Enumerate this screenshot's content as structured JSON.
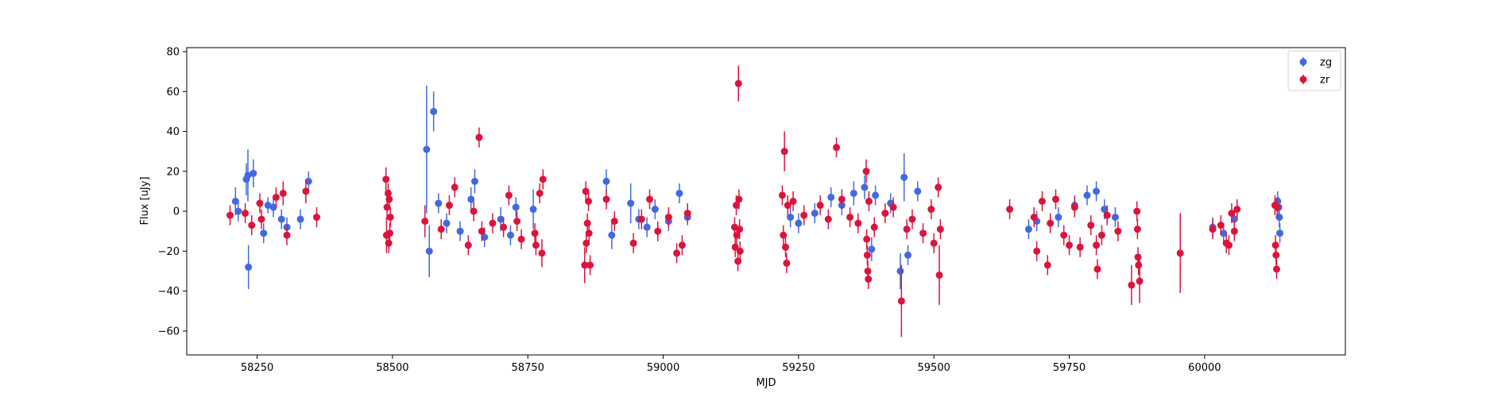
{
  "chart_data": {
    "type": "scatter",
    "title": "",
    "xlabel": "MJD",
    "ylabel": "Flux [uJy]",
    "xlim": [
      58120,
      60260
    ],
    "ylim": [
      -72,
      82
    ],
    "x_ticks": [
      58250,
      58500,
      58750,
      59000,
      59250,
      59500,
      59750,
      60000
    ],
    "x_tick_labels": [
      "58250",
      "58500",
      "58750",
      "59000",
      "59250",
      "59500",
      "59750",
      "60000"
    ],
    "y_ticks": [
      -60,
      -40,
      -20,
      0,
      20,
      40,
      60,
      80
    ],
    "y_tick_labels": [
      "−60",
      "−40",
      "−20",
      "0",
      "20",
      "40",
      "60",
      "80"
    ],
    "grid": false,
    "legend_position": "top-right",
    "series": [
      {
        "name": "zg",
        "color": "#4169e1",
        "points": [
          {
            "x": 58210,
            "y": 5,
            "err": 7
          },
          {
            "x": 58215,
            "y": 0,
            "err": 5
          },
          {
            "x": 58230,
            "y": 16,
            "err": 8
          },
          {
            "x": 58233,
            "y": 18,
            "err": 13
          },
          {
            "x": 58234,
            "y": -28,
            "err": 11
          },
          {
            "x": 58243,
            "y": 19,
            "err": 7
          },
          {
            "x": 58262,
            "y": -11,
            "err": 5
          },
          {
            "x": 58270,
            "y": 3,
            "err": 4
          },
          {
            "x": 58280,
            "y": 2,
            "err": 5
          },
          {
            "x": 58295,
            "y": -4,
            "err": 5
          },
          {
            "x": 58305,
            "y": -8,
            "err": 5
          },
          {
            "x": 58330,
            "y": -4,
            "err": 5
          },
          {
            "x": 58345,
            "y": 15,
            "err": 5
          },
          {
            "x": 58563,
            "y": 31,
            "err": 32
          },
          {
            "x": 58568,
            "y": -20,
            "err": 13
          },
          {
            "x": 58576,
            "y": 50,
            "err": 10
          },
          {
            "x": 58585,
            "y": 4,
            "err": 5
          },
          {
            "x": 58600,
            "y": -6,
            "err": 5
          },
          {
            "x": 58625,
            "y": -10,
            "err": 5
          },
          {
            "x": 58645,
            "y": 6,
            "err": 6
          },
          {
            "x": 58652,
            "y": 15,
            "err": 6
          },
          {
            "x": 58670,
            "y": -13,
            "err": 5
          },
          {
            "x": 58700,
            "y": -4,
            "err": 6
          },
          {
            "x": 58718,
            "y": -12,
            "err": 5
          },
          {
            "x": 58728,
            "y": 2,
            "err": 5
          },
          {
            "x": 58760,
            "y": 1,
            "err": 10
          },
          {
            "x": 58895,
            "y": 15,
            "err": 6
          },
          {
            "x": 58905,
            "y": -12,
            "err": 7
          },
          {
            "x": 58940,
            "y": 4,
            "err": 10
          },
          {
            "x": 58955,
            "y": -4,
            "err": 5
          },
          {
            "x": 58970,
            "y": -8,
            "err": 5
          },
          {
            "x": 58985,
            "y": 1,
            "err": 5
          },
          {
            "x": 59010,
            "y": -5,
            "err": 5
          },
          {
            "x": 59030,
            "y": 9,
            "err": 5
          },
          {
            "x": 59045,
            "y": -3,
            "err": 4
          },
          {
            "x": 59235,
            "y": -3,
            "err": 5
          },
          {
            "x": 59250,
            "y": -6,
            "err": 5
          },
          {
            "x": 59280,
            "y": -1,
            "err": 5
          },
          {
            "x": 59310,
            "y": 7,
            "err": 5
          },
          {
            "x": 59330,
            "y": 3,
            "err": 5
          },
          {
            "x": 59352,
            "y": 9,
            "err": 6
          },
          {
            "x": 59372,
            "y": 12,
            "err": 6
          },
          {
            "x": 59385,
            "y": -19,
            "err": 6
          },
          {
            "x": 59392,
            "y": 8,
            "err": 5
          },
          {
            "x": 59420,
            "y": 4,
            "err": 5
          },
          {
            "x": 59438,
            "y": -30,
            "err": 9
          },
          {
            "x": 59445,
            "y": 17,
            "err": 12
          },
          {
            "x": 59452,
            "y": -22,
            "err": 5
          },
          {
            "x": 59470,
            "y": 10,
            "err": 5
          },
          {
            "x": 59675,
            "y": -9,
            "err": 5
          },
          {
            "x": 59690,
            "y": -5,
            "err": 5
          },
          {
            "x": 59730,
            "y": -3,
            "err": 5
          },
          {
            "x": 59760,
            "y": 3,
            "err": 5
          },
          {
            "x": 59783,
            "y": 8,
            "err": 5
          },
          {
            "x": 59800,
            "y": 10,
            "err": 5
          },
          {
            "x": 59815,
            "y": 1,
            "err": 5
          },
          {
            "x": 59835,
            "y": -3,
            "err": 5
          },
          {
            "x": 60015,
            "y": -8,
            "err": 5
          },
          {
            "x": 60035,
            "y": -11,
            "err": 5
          },
          {
            "x": 60055,
            "y": -4,
            "err": 5
          },
          {
            "x": 60135,
            "y": 5,
            "err": 5
          },
          {
            "x": 60137,
            "y": 2,
            "err": 5
          },
          {
            "x": 60138,
            "y": -3,
            "err": 5
          },
          {
            "x": 60139,
            "y": -11,
            "err": 5
          }
        ]
      },
      {
        "name": "zr",
        "color": "#dc143c",
        "points": [
          {
            "x": 58200,
            "y": -2,
            "err": 5
          },
          {
            "x": 58228,
            "y": -1,
            "err": 5
          },
          {
            "x": 58240,
            "y": -7,
            "err": 5
          },
          {
            "x": 58255,
            "y": 4,
            "err": 5
          },
          {
            "x": 58258,
            "y": -4,
            "err": 5
          },
          {
            "x": 58285,
            "y": 7,
            "err": 5
          },
          {
            "x": 58298,
            "y": 9,
            "err": 6
          },
          {
            "x": 58305,
            "y": -12,
            "err": 5
          },
          {
            "x": 58340,
            "y": 10,
            "err": 6
          },
          {
            "x": 58360,
            "y": -3,
            "err": 5
          },
          {
            "x": 58488,
            "y": 16,
            "err": 6
          },
          {
            "x": 58489,
            "y": -12,
            "err": 9
          },
          {
            "x": 58490,
            "y": 2,
            "err": 6
          },
          {
            "x": 58492,
            "y": 9,
            "err": 5
          },
          {
            "x": 58493,
            "y": -16,
            "err": 5
          },
          {
            "x": 58494,
            "y": 6,
            "err": 5
          },
          {
            "x": 58495,
            "y": -11,
            "err": 5
          },
          {
            "x": 58496,
            "y": -3,
            "err": 5
          },
          {
            "x": 58560,
            "y": -5,
            "err": 8
          },
          {
            "x": 58590,
            "y": -9,
            "err": 5
          },
          {
            "x": 58605,
            "y": 3,
            "err": 5
          },
          {
            "x": 58615,
            "y": 12,
            "err": 5
          },
          {
            "x": 58640,
            "y": -17,
            "err": 5
          },
          {
            "x": 58650,
            "y": 0,
            "err": 5
          },
          {
            "x": 58660,
            "y": 37,
            "err": 5
          },
          {
            "x": 58665,
            "y": -10,
            "err": 5
          },
          {
            "x": 58685,
            "y": -6,
            "err": 5
          },
          {
            "x": 58705,
            "y": -8,
            "err": 5
          },
          {
            "x": 58715,
            "y": 8,
            "err": 5
          },
          {
            "x": 58730,
            "y": -5,
            "err": 5
          },
          {
            "x": 58738,
            "y": -14,
            "err": 5
          },
          {
            "x": 58763,
            "y": -11,
            "err": 5
          },
          {
            "x": 58765,
            "y": -17,
            "err": 5
          },
          {
            "x": 58772,
            "y": 9,
            "err": 5
          },
          {
            "x": 58776,
            "y": -21,
            "err": 7
          },
          {
            "x": 58778,
            "y": 16,
            "err": 5
          },
          {
            "x": 58855,
            "y": -27,
            "err": 9
          },
          {
            "x": 58857,
            "y": 10,
            "err": 5
          },
          {
            "x": 58858,
            "y": -16,
            "err": 5
          },
          {
            "x": 58860,
            "y": -6,
            "err": 5
          },
          {
            "x": 58862,
            "y": 5,
            "err": 5
          },
          {
            "x": 58863,
            "y": -11,
            "err": 5
          },
          {
            "x": 58865,
            "y": -27,
            "err": 5
          },
          {
            "x": 58895,
            "y": 6,
            "err": 5
          },
          {
            "x": 58910,
            "y": -5,
            "err": 5
          },
          {
            "x": 58945,
            "y": -16,
            "err": 5
          },
          {
            "x": 58960,
            "y": -4,
            "err": 5
          },
          {
            "x": 58975,
            "y": 6,
            "err": 5
          },
          {
            "x": 58990,
            "y": -10,
            "err": 5
          },
          {
            "x": 59010,
            "y": -3,
            "err": 5
          },
          {
            "x": 59025,
            "y": -21,
            "err": 5
          },
          {
            "x": 59035,
            "y": -17,
            "err": 5
          },
          {
            "x": 59045,
            "y": -1,
            "err": 5
          },
          {
            "x": 59132,
            "y": -8,
            "err": 5
          },
          {
            "x": 59133,
            "y": -18,
            "err": 5
          },
          {
            "x": 59135,
            "y": 3,
            "err": 5
          },
          {
            "x": 59136,
            "y": -12,
            "err": 5
          },
          {
            "x": 59138,
            "y": -25,
            "err": 5
          },
          {
            "x": 59139,
            "y": 64,
            "err": 9
          },
          {
            "x": 59140,
            "y": 6,
            "err": 5
          },
          {
            "x": 59141,
            "y": -9,
            "err": 5
          },
          {
            "x": 59142,
            "y": -20,
            "err": 5
          },
          {
            "x": 59220,
            "y": 8,
            "err": 5
          },
          {
            "x": 59222,
            "y": -12,
            "err": 5
          },
          {
            "x": 59224,
            "y": 30,
            "err": 10
          },
          {
            "x": 59226,
            "y": -18,
            "err": 5
          },
          {
            "x": 59228,
            "y": -26,
            "err": 5
          },
          {
            "x": 59230,
            "y": 3,
            "err": 5
          },
          {
            "x": 59240,
            "y": 5,
            "err": 5
          },
          {
            "x": 59260,
            "y": -2,
            "err": 5
          },
          {
            "x": 59290,
            "y": 3,
            "err": 5
          },
          {
            "x": 59305,
            "y": -4,
            "err": 5
          },
          {
            "x": 59320,
            "y": 32,
            "err": 5
          },
          {
            "x": 59330,
            "y": 6,
            "err": 5
          },
          {
            "x": 59345,
            "y": -3,
            "err": 5
          },
          {
            "x": 59360,
            "y": -6,
            "err": 5
          },
          {
            "x": 59375,
            "y": 20,
            "err": 6
          },
          {
            "x": 59376,
            "y": -14,
            "err": 5
          },
          {
            "x": 59377,
            "y": -22,
            "err": 5
          },
          {
            "x": 59378,
            "y": -30,
            "err": 5
          },
          {
            "x": 59379,
            "y": -34,
            "err": 5
          },
          {
            "x": 59380,
            "y": 5,
            "err": 5
          },
          {
            "x": 59390,
            "y": -8,
            "err": 5
          },
          {
            "x": 59410,
            "y": -1,
            "err": 5
          },
          {
            "x": 59425,
            "y": 2,
            "err": 5
          },
          {
            "x": 59440,
            "y": -45,
            "err": 18
          },
          {
            "x": 59450,
            "y": -9,
            "err": 5
          },
          {
            "x": 59460,
            "y": -4,
            "err": 5
          },
          {
            "x": 59480,
            "y": -11,
            "err": 5
          },
          {
            "x": 59495,
            "y": 1,
            "err": 5
          },
          {
            "x": 59500,
            "y": -16,
            "err": 5
          },
          {
            "x": 59508,
            "y": 12,
            "err": 5
          },
          {
            "x": 59510,
            "y": -32,
            "err": 15
          },
          {
            "x": 59512,
            "y": -9,
            "err": 5
          },
          {
            "x": 59640,
            "y": 1,
            "err": 5
          },
          {
            "x": 59685,
            "y": -3,
            "err": 5
          },
          {
            "x": 59690,
            "y": -20,
            "err": 5
          },
          {
            "x": 59700,
            "y": 5,
            "err": 5
          },
          {
            "x": 59710,
            "y": -27,
            "err": 5
          },
          {
            "x": 59715,
            "y": -6,
            "err": 5
          },
          {
            "x": 59725,
            "y": 6,
            "err": 5
          },
          {
            "x": 59740,
            "y": -12,
            "err": 5
          },
          {
            "x": 59750,
            "y": -17,
            "err": 5
          },
          {
            "x": 59760,
            "y": 2,
            "err": 5
          },
          {
            "x": 59770,
            "y": -18,
            "err": 5
          },
          {
            "x": 59790,
            "y": -7,
            "err": 5
          },
          {
            "x": 59800,
            "y": -17,
            "err": 5
          },
          {
            "x": 59802,
            "y": -29,
            "err": 5
          },
          {
            "x": 59810,
            "y": -12,
            "err": 5
          },
          {
            "x": 59820,
            "y": -2,
            "err": 5
          },
          {
            "x": 59840,
            "y": -10,
            "err": 5
          },
          {
            "x": 59865,
            "y": -37,
            "err": 10
          },
          {
            "x": 59875,
            "y": 0,
            "err": 5
          },
          {
            "x": 59876,
            "y": -9,
            "err": 5
          },
          {
            "x": 59877,
            "y": -23,
            "err": 5
          },
          {
            "x": 59878,
            "y": -27,
            "err": 5
          },
          {
            "x": 59880,
            "y": -35,
            "err": 11
          },
          {
            "x": 59955,
            "y": -21,
            "err": 20
          },
          {
            "x": 60015,
            "y": -9,
            "err": 5
          },
          {
            "x": 60030,
            "y": -7,
            "err": 5
          },
          {
            "x": 60040,
            "y": -16,
            "err": 5
          },
          {
            "x": 60045,
            "y": -17,
            "err": 5
          },
          {
            "x": 60050,
            "y": -1,
            "err": 5
          },
          {
            "x": 60055,
            "y": -10,
            "err": 5
          },
          {
            "x": 60060,
            "y": 1,
            "err": 5
          },
          {
            "x": 60130,
            "y": 3,
            "err": 5
          },
          {
            "x": 60131,
            "y": -17,
            "err": 5
          },
          {
            "x": 60132,
            "y": -22,
            "err": 5
          },
          {
            "x": 60133,
            "y": -29,
            "err": 5
          },
          {
            "x": 60134,
            "y": 2,
            "err": 5
          }
        ]
      }
    ]
  }
}
